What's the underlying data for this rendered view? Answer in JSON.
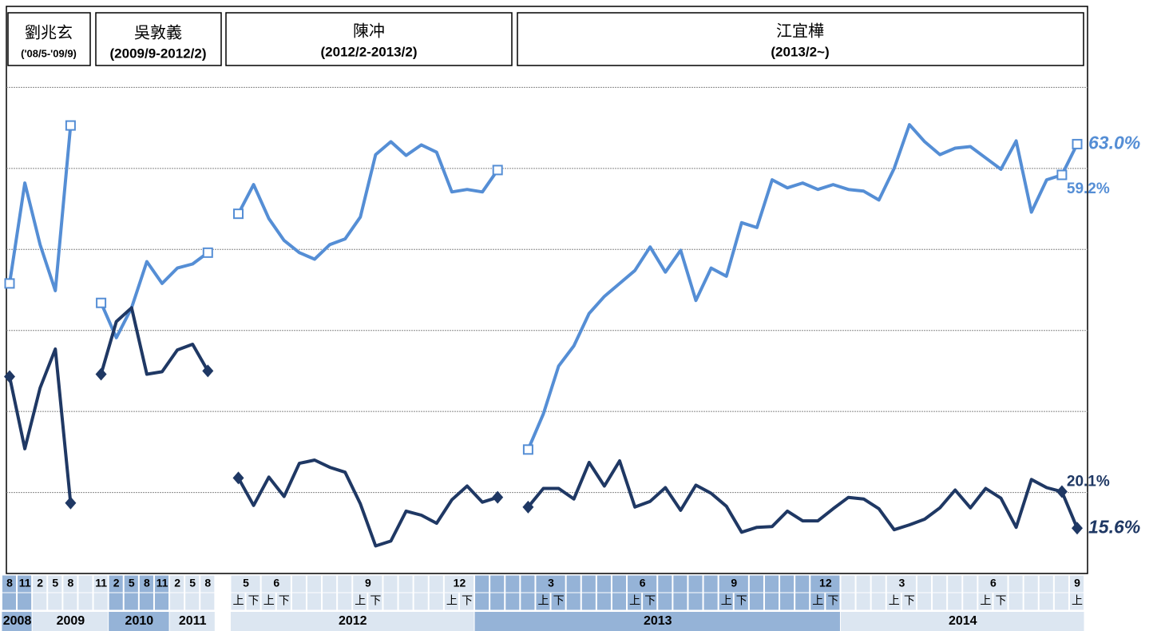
{
  "chart_data": {
    "type": "line",
    "leaders": [
      {
        "name": "劉兆玄",
        "term": "('08/5-'09/9)"
      },
      {
        "name": "吳敦義",
        "term": "(2009/9-2012/2)"
      },
      {
        "name": "陳冲",
        "term": "(2012/2-2013/2)"
      },
      {
        "name": "江宜樺",
        "term": "(2013/2~)"
      }
    ],
    "ylim": [
      10,
      80
    ],
    "yticks": [
      20,
      30,
      40,
      50,
      60,
      70
    ],
    "grid": true,
    "month_row": [
      {
        "label": "8",
        "span": 1
      },
      {
        "label": "11",
        "span": 1
      },
      {
        "label": "2",
        "span": 1
      },
      {
        "label": "5",
        "span": 1
      },
      {
        "label": "8",
        "span": 1
      },
      null,
      {
        "label": "11",
        "span": 1
      },
      {
        "label": "2",
        "span": 1
      },
      {
        "label": "5",
        "span": 1
      },
      {
        "label": "8",
        "span": 1
      },
      {
        "label": "11",
        "span": 1
      },
      {
        "label": "2",
        "span": 1
      },
      {
        "label": "5",
        "span": 1
      },
      {
        "label": "8",
        "span": 1
      },
      null,
      {
        "label": "5",
        "span": 2
      },
      {
        "label": "6",
        "span": 2
      },
      null,
      null,
      null,
      null,
      {
        "label": "9",
        "span": 2
      },
      null,
      null,
      null,
      null,
      {
        "label": "12",
        "span": 2
      },
      null,
      null,
      null,
      null,
      {
        "label": "3",
        "span": 2
      },
      null,
      null,
      null,
      null,
      {
        "label": "6",
        "span": 2
      },
      null,
      null,
      null,
      null,
      {
        "label": "9",
        "span": 2
      },
      null,
      null,
      null,
      null,
      {
        "label": "12",
        "span": 2
      },
      null,
      null,
      null,
      {
        "label": "3",
        "span": 2
      },
      null,
      null,
      null,
      null,
      {
        "label": "6",
        "span": 2
      },
      null,
      null,
      null,
      null,
      {
        "label": "9",
        "span": 1
      }
    ],
    "half_row": [
      null,
      null,
      null,
      null,
      null,
      null,
      null,
      null,
      null,
      null,
      null,
      null,
      null,
      null,
      null,
      "上",
      "下",
      "上",
      "下",
      null,
      null,
      null,
      null,
      "上",
      "下",
      null,
      null,
      null,
      null,
      "上",
      "下",
      null,
      null,
      null,
      null,
      "上",
      "下",
      null,
      null,
      null,
      null,
      "上",
      "下",
      null,
      null,
      null,
      null,
      "上",
      "下",
      null,
      null,
      null,
      null,
      "上",
      "下",
      null,
      null,
      null,
      "上",
      "下",
      null,
      null,
      null,
      null,
      "上",
      "下",
      null,
      null,
      null,
      null,
      "上"
    ],
    "year_row": [
      {
        "label": "2008",
        "span": 2
      },
      {
        "label": "2009",
        "span": 5
      },
      {
        "label": "2010",
        "span": 4
      },
      {
        "label": "2011",
        "span": 3
      },
      null,
      {
        "label": "2012",
        "span": 16
      },
      {
        "label": "2013",
        "span": 24
      },
      {
        "label": "2014",
        "span": 16
      }
    ],
    "series": [
      {
        "color": "#558ed5",
        "marker": "square",
        "values": [
          45.8,
          58.2,
          50.6,
          44.9,
          65.3,
          null,
          43.4,
          39.1,
          42.8,
          48.5,
          45.8,
          47.7,
          48.2,
          49.6,
          null,
          54.4,
          58.0,
          53.8,
          51.1,
          49.6,
          48.8,
          50.6,
          51.3,
          54.0,
          61.7,
          63.3,
          61.6,
          62.9,
          62.0,
          57.1,
          57.4,
          57.1,
          59.8,
          null,
          25.3,
          29.7,
          35.6,
          38.1,
          42.1,
          44.2,
          45.8,
          47.4,
          50.3,
          47.2,
          49.9,
          43.7,
          47.7,
          46.7,
          53.3,
          52.7,
          58.6,
          57.6,
          58.2,
          57.4,
          58.0,
          57.4,
          57.2,
          56.1,
          60.0,
          65.4,
          63.3,
          61.7,
          62.5,
          62.7,
          61.3,
          59.9,
          63.4,
          54.6,
          58.6,
          59.2,
          63.0
        ],
        "value_labels": [
          null,
          null,
          null,
          null,
          null,
          null,
          null,
          null,
          null,
          null,
          null,
          null,
          null,
          null,
          null,
          null,
          null,
          null,
          null,
          null,
          null,
          null,
          null,
          null,
          null,
          null,
          null,
          null,
          null,
          null,
          null,
          null,
          null,
          null,
          null,
          null,
          null,
          null,
          null,
          null,
          null,
          null,
          null,
          null,
          null,
          null,
          null,
          null,
          null,
          null,
          null,
          null,
          null,
          null,
          null,
          null,
          null,
          null,
          null,
          null,
          null,
          null,
          null,
          null,
          null,
          null,
          null,
          null,
          null,
          "59.2%",
          "63.0%"
        ]
      },
      {
        "color": "#1f3864",
        "marker": "diamond",
        "values": [
          34.3,
          25.4,
          32.9,
          37.7,
          18.7,
          null,
          34.6,
          41.1,
          42.8,
          34.6,
          34.9,
          37.6,
          38.3,
          35.0,
          null,
          21.8,
          18.4,
          21.9,
          19.5,
          23.6,
          24.0,
          23.1,
          22.5,
          18.6,
          13.4,
          14.0,
          17.7,
          17.2,
          16.2,
          19.1,
          20.8,
          18.8,
          19.4,
          null,
          18.2,
          20.5,
          20.5,
          19.2,
          23.7,
          20.8,
          23.9,
          18.2,
          18.9,
          20.6,
          17.8,
          20.9,
          19.9,
          18.3,
          15.1,
          15.7,
          15.8,
          17.7,
          16.5,
          16.5,
          18.0,
          19.4,
          19.2,
          18.0,
          15.4,
          16.0,
          16.7,
          18.1,
          20.3,
          18.1,
          20.5,
          19.3,
          15.7,
          21.6,
          20.6,
          20.1,
          15.6
        ],
        "value_labels": [
          null,
          null,
          null,
          null,
          null,
          null,
          null,
          null,
          null,
          null,
          null,
          null,
          null,
          null,
          null,
          null,
          null,
          null,
          null,
          null,
          null,
          null,
          null,
          null,
          null,
          null,
          null,
          null,
          null,
          null,
          null,
          null,
          null,
          null,
          null,
          null,
          null,
          null,
          null,
          null,
          null,
          null,
          null,
          null,
          null,
          null,
          null,
          null,
          null,
          null,
          null,
          null,
          null,
          null,
          null,
          null,
          null,
          null,
          null,
          null,
          null,
          null,
          null,
          null,
          null,
          null,
          null,
          null,
          null,
          "20.1%",
          "15.6%"
        ]
      }
    ]
  }
}
